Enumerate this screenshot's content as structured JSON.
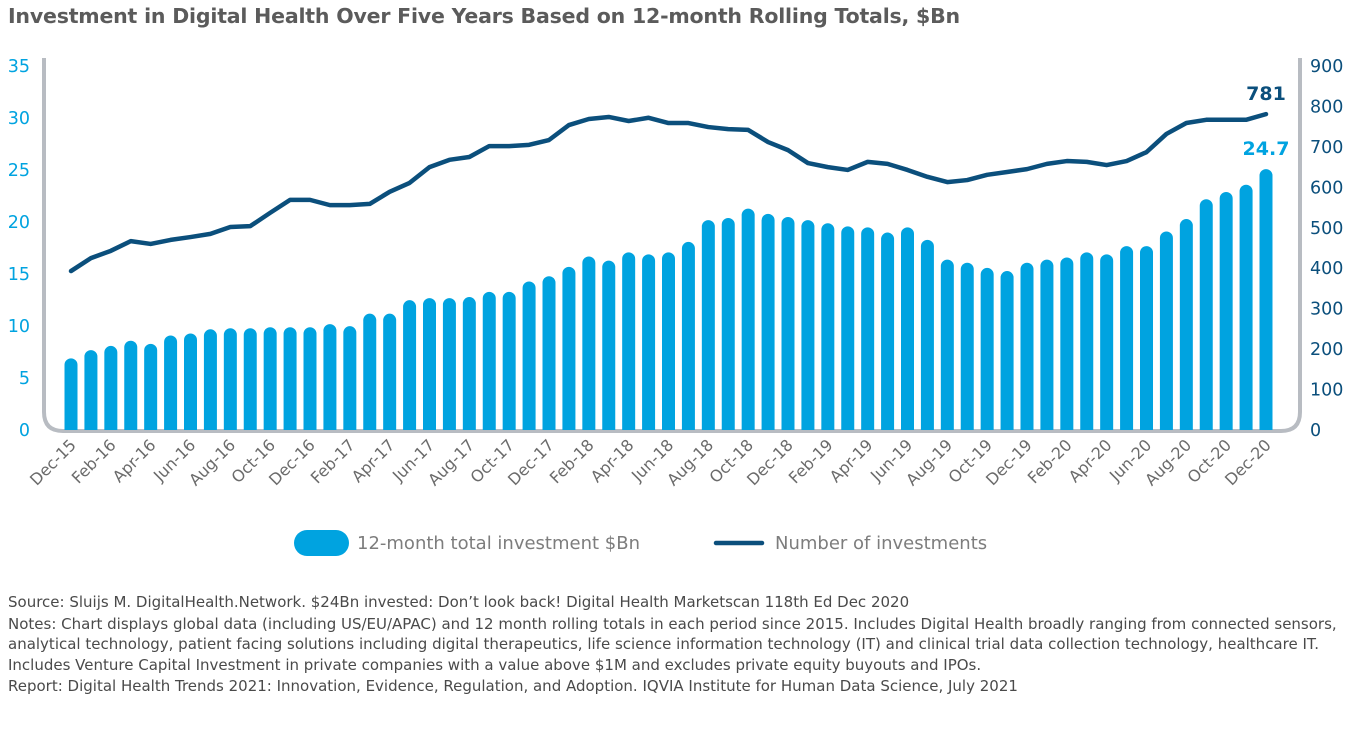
{
  "title": "Investment in Digital Health Over Five Years Based on 12-month Rolling Totals, $Bn",
  "chart_data": {
    "type": "bar+line",
    "title": "Investment in Digital Health Over Five Years Based on 12-month Rolling Totals, $Bn",
    "x": [
      "Dec-15",
      "Jan-16",
      "Feb-16",
      "Mar-16",
      "Apr-16",
      "May-16",
      "Jun-16",
      "Jul-16",
      "Aug-16",
      "Sep-16",
      "Oct-16",
      "Nov-16",
      "Dec-16",
      "Jan-17",
      "Feb-17",
      "Mar-17",
      "Apr-17",
      "May-17",
      "Jun-17",
      "Jul-17",
      "Aug-17",
      "Sep-17",
      "Oct-17",
      "Nov-17",
      "Dec-17",
      "Jan-18",
      "Feb-18",
      "Mar-18",
      "Apr-18",
      "May-18",
      "Jun-18",
      "Jul-18",
      "Aug-18",
      "Sep-18",
      "Oct-18",
      "Nov-18",
      "Dec-18",
      "Jan-19",
      "Feb-19",
      "Mar-19",
      "Apr-19",
      "May-19",
      "Jun-19",
      "Jul-19",
      "Aug-19",
      "Sep-19",
      "Oct-19",
      "Nov-19",
      "Dec-19",
      "Jan-20",
      "Feb-20",
      "Mar-20",
      "Apr-20",
      "May-20",
      "Jun-20",
      "Jul-20",
      "Aug-20",
      "Sep-20",
      "Oct-20",
      "Nov-20",
      "Dec-20"
    ],
    "x_tick_labels": [
      "Dec-15",
      "Feb-16",
      "Apr-16",
      "Jun-16",
      "Aug-16",
      "Oct-16",
      "Dec-16",
      "Feb-17",
      "Apr-17",
      "Jun-17",
      "Aug-17",
      "Oct-17",
      "Dec-17",
      "Feb-18",
      "Apr-18",
      "Jun-18",
      "Aug-18",
      "Oct-18",
      "Dec-18",
      "Feb-19",
      "Apr-19",
      "Jun-19",
      "Aug-19",
      "Oct-19",
      "Dec-19",
      "Feb-20",
      "Apr-20",
      "Jun-20",
      "Aug-20",
      "Oct-20",
      "Dec-20"
    ],
    "series": [
      {
        "name": "12-month total investment $Bn",
        "type": "bar",
        "axis": "left",
        "color": "#00a3e0",
        "values": [
          6.5,
          7.3,
          7.7,
          8.2,
          7.9,
          8.7,
          8.9,
          9.3,
          9.4,
          9.4,
          9.5,
          9.5,
          9.5,
          9.8,
          9.6,
          10.8,
          10.8,
          12.1,
          12.3,
          12.3,
          12.4,
          12.9,
          12.9,
          13.9,
          14.4,
          15.3,
          16.3,
          15.9,
          16.7,
          16.5,
          16.7,
          17.7,
          19.8,
          20.0,
          20.9,
          20.4,
          20.1,
          19.8,
          19.5,
          19.2,
          19.1,
          18.6,
          19.1,
          17.9,
          16.0,
          15.7,
          15.2,
          14.9,
          15.7,
          16.0,
          16.2,
          16.7,
          16.5,
          17.3,
          17.3,
          18.7,
          19.9,
          21.8,
          22.5,
          23.2,
          24.7
        ]
      },
      {
        "name": "Number of investments",
        "type": "line",
        "axis": "right",
        "color": "#0b4f7c",
        "values": [
          393,
          425,
          443,
          467,
          460,
          470,
          477,
          485,
          502,
          504,
          537,
          569,
          569,
          556,
          556,
          559,
          589,
          611,
          650,
          668,
          675,
          702,
          702,
          705,
          717,
          754,
          769,
          774,
          764,
          772,
          759,
          759,
          749,
          744,
          742,
          712,
          692,
          660,
          650,
          643,
          663,
          658,
          643,
          626,
          613,
          618,
          631,
          638,
          645,
          658,
          665,
          663,
          655,
          665,
          687,
          732,
          759,
          767,
          767,
          767,
          781
        ]
      }
    ],
    "data_labels": {
      "bar_last": "24.7",
      "line_last": "781"
    },
    "y_left": {
      "ylim": [
        0,
        35
      ],
      "ticks": [
        "0",
        "5",
        "10",
        "15",
        "20",
        "25",
        "30",
        "35"
      ]
    },
    "y_right": {
      "ylim": [
        0,
        900
      ],
      "ticks": [
        "0",
        "100",
        "200",
        "300",
        "400",
        "500",
        "600",
        "700",
        "800",
        "900"
      ]
    },
    "grid": false,
    "legend_position": "bottom"
  },
  "legend": {
    "bar_label": "12-month total investment $Bn",
    "line_label": "Number of investments"
  },
  "notes": {
    "source": "Source: Sluijs M. DigitalHealth.Network. $24Bn invested: Don’t look back! Digital Health Marketscan 118th Ed Dec 2020",
    "notes": "Notes: Chart displays global data (including US/EU/APAC) and 12 month rolling totals in each period since 2015. Includes Digital Health broadly ranging from connected sensors, analytical technology, patient facing solutions including digital therapeutics, life science information technology (IT) and clinical trial data collection technology, healthcare IT. Includes Venture Capital Investment in private companies with a value above $1M and excludes private equity buyouts and IPOs.",
    "report": "Report: Digital Health Trends 2021: Innovation, Evidence, Regulation, and Adoption. IQVIA Institute for Human Data Science, July 2021"
  }
}
